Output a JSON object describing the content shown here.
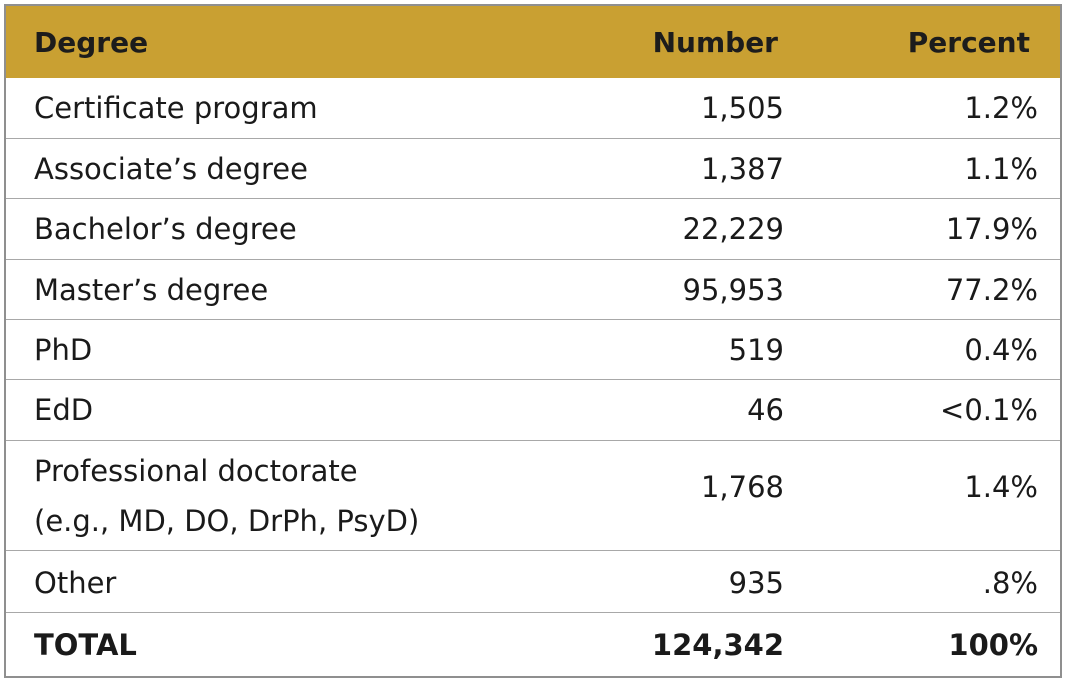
{
  "table": {
    "headers": {
      "degree": "Degree",
      "number": "Number",
      "percent": "Percent"
    },
    "rows": [
      {
        "degree": "Certificate program",
        "number": "1,505",
        "percent": "1.2%"
      },
      {
        "degree": "Associate’s degree",
        "number": "1,387",
        "percent": "1.1%"
      },
      {
        "degree": "Bachelor’s degree",
        "number": "22,229",
        "percent": "17.9%"
      },
      {
        "degree": "Master’s degree",
        "number": "95,953",
        "percent": "77.2%"
      },
      {
        "degree": "PhD",
        "number": "519",
        "percent": "0.4%"
      },
      {
        "degree": "EdD",
        "number": "46",
        "percent": "<0.1%"
      },
      {
        "degree": "Professional doctorate",
        "degree_sub": "(e.g., MD, DO, DrPh, PsyD)",
        "number": "1,768",
        "percent": "1.4%"
      },
      {
        "degree": "Other",
        "number": "935",
        "percent": ".8%"
      }
    ],
    "total": {
      "degree": "TOTAL",
      "number": "124,342",
      "percent": "100%"
    }
  },
  "colors": {
    "header_background": "#c9a032",
    "border": "#a8a8a8"
  }
}
